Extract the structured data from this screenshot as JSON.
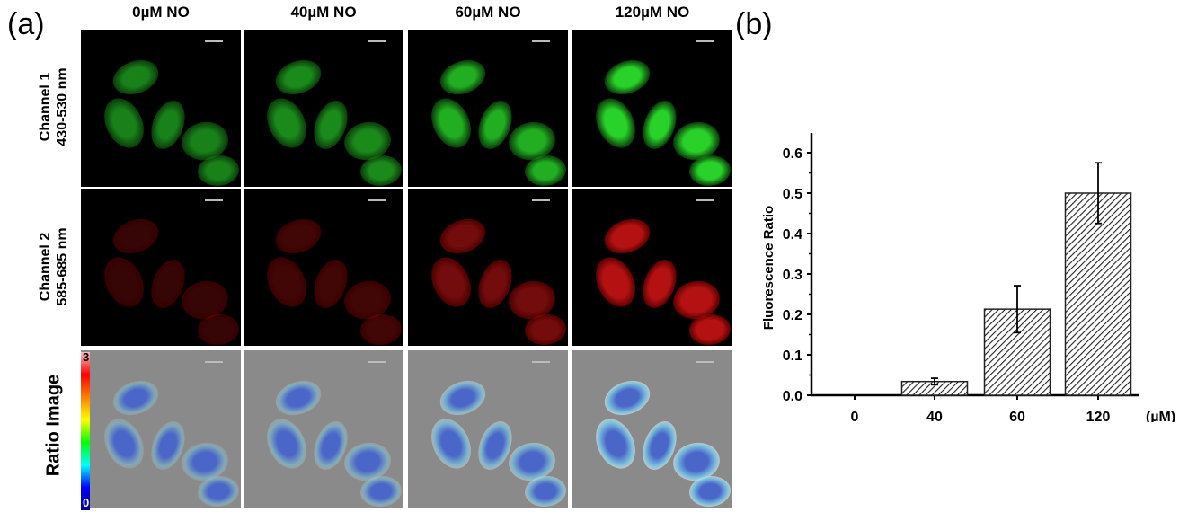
{
  "panel_a": {
    "label": "(a)",
    "columns": [
      "0µM  NO",
      "40µM  NO",
      "60µM  NO",
      "120µM  NO"
    ],
    "rows": [
      {
        "line1": "Channel 1",
        "line2": "430-530 nm"
      },
      {
        "line1": "Channel 2",
        "line2": "585-685 nm"
      },
      {
        "line1": "Ratio Image",
        "line2": ""
      }
    ],
    "colorbar": {
      "max": "3",
      "min": "0"
    },
    "intensity": [
      0.55,
      0.6,
      0.8,
      1.0
    ]
  },
  "panel_b": {
    "label": "(b)"
  },
  "chart_data": {
    "type": "bar",
    "categories": [
      "0",
      "40",
      "60",
      "120"
    ],
    "values": [
      0,
      0.034,
      0.213,
      0.5
    ],
    "errors": [
      0,
      0.008,
      0.058,
      0.075
    ],
    "xlabel": "(µM)",
    "ylabel": "Fluorescence Ratio",
    "ylim": [
      0,
      0.65
    ],
    "yticks": [
      "0.0",
      "0.1",
      "0.2",
      "0.3",
      "0.4",
      "0.5",
      "0.6"
    ],
    "pattern": "hatched",
    "grid": false
  }
}
